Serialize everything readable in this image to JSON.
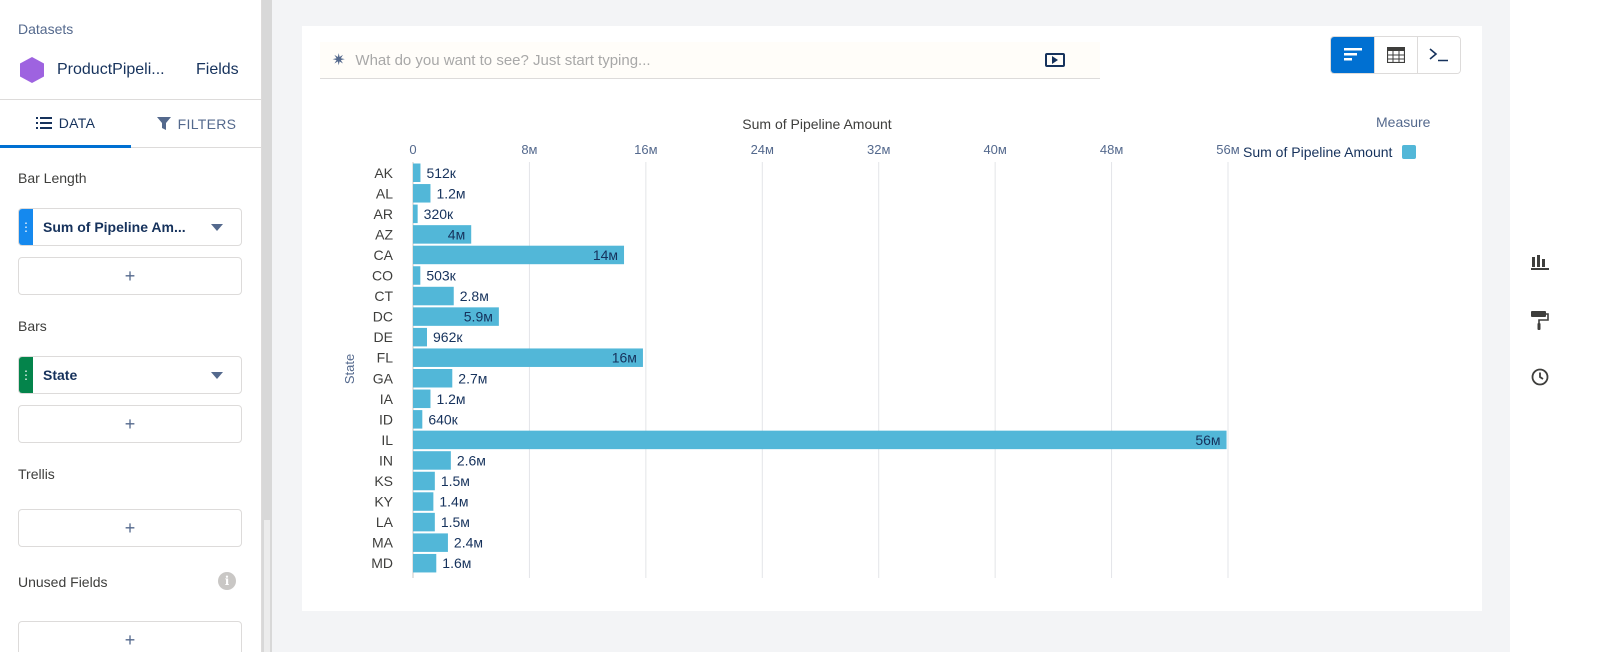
{
  "sidebar": {
    "datasets_title": "Datasets",
    "dataset_name": "ProductPipeli...",
    "fields_link": "Fields",
    "tabs": [
      {
        "label": "DATA"
      },
      {
        "label": "FILTERS"
      }
    ],
    "sections": {
      "bar_length": "Bar Length",
      "bars": "Bars",
      "trellis": "Trellis",
      "unused_fields": "Unused Fields"
    },
    "bar_length_pill": "Sum of Pipeline Am...",
    "bars_pill": "State",
    "add_symbol": "+",
    "info_symbol": "i"
  },
  "query": {
    "placeholder": "What do you want to see? Just start typing..."
  },
  "legend": {
    "title": "Measure",
    "item": "Sum of Pipeline Amount"
  },
  "colors": {
    "bar": "#52b7d8",
    "accent": "#0070d2",
    "dimension_grip": "#04844b"
  },
  "chart_data": {
    "type": "bar",
    "orientation": "horizontal",
    "title": "Sum of Pipeline Amount",
    "ylabel": "State",
    "xlim": [
      0,
      56000000
    ],
    "ticks": [
      {
        "value": 0,
        "label": "0"
      },
      {
        "value": 8000000,
        "label": "8м"
      },
      {
        "value": 16000000,
        "label": "16м"
      },
      {
        "value": 24000000,
        "label": "24м"
      },
      {
        "value": 32000000,
        "label": "32м"
      },
      {
        "value": 40000000,
        "label": "40м"
      },
      {
        "value": 48000000,
        "label": "48м"
      },
      {
        "value": 56000000,
        "label": "56м"
      }
    ],
    "categories": [
      "AK",
      "AL",
      "AR",
      "AZ",
      "CA",
      "CO",
      "CT",
      "DC",
      "DE",
      "FL",
      "GA",
      "IA",
      "ID",
      "IL",
      "IN",
      "KS",
      "KY",
      "LA",
      "MA",
      "MD"
    ],
    "values": [
      512000,
      1200000,
      320000,
      4000000,
      14500000,
      503000,
      2800000,
      5900000,
      962000,
      15800000,
      2700000,
      1200000,
      640000,
      55900000,
      2600000,
      1500000,
      1400000,
      1500000,
      2400000,
      1600000
    ],
    "labels": [
      "512к",
      "1.2м",
      "320к",
      "4м",
      "14м",
      "503к",
      "2.8м",
      "5.9м",
      "962к",
      "16м",
      "2.7м",
      "1.2м",
      "640к",
      "56м",
      "2.6м",
      "1.5м",
      "1.4м",
      "1.5м",
      "2.4м",
      "1.6м"
    ],
    "grid": true,
    "legend_position": "top-right"
  }
}
